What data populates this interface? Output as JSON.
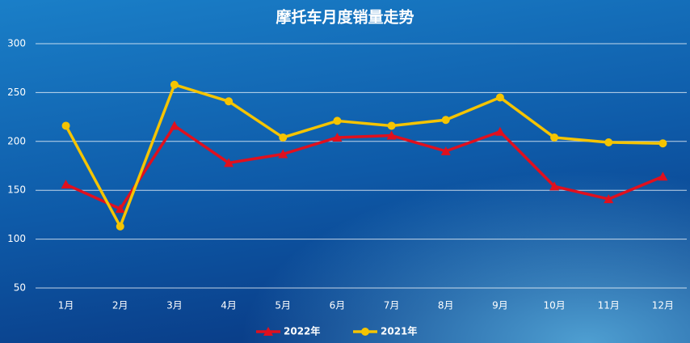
{
  "chart_data": {
    "type": "line",
    "title": "摩托车月度销量走势",
    "categories": [
      "1月",
      "2月",
      "3月",
      "4月",
      "5月",
      "6月",
      "7月",
      "8月",
      "9月",
      "10月",
      "11月",
      "12月"
    ],
    "series": [
      {
        "name": "2022年",
        "color": "#e0101e",
        "marker": "triangle",
        "values": [
          156,
          131,
          216,
          178,
          187,
          204,
          206,
          190,
          210,
          154,
          141,
          164
        ]
      },
      {
        "name": "2021年",
        "color": "#f5c400",
        "marker": "circle",
        "values": [
          216,
          113,
          258,
          241,
          204,
          221,
          216,
          222,
          245,
          204,
          199,
          198
        ]
      }
    ],
    "ylim": [
      50,
      300
    ],
    "yticks": [
      50,
      100,
      150,
      200,
      250,
      300
    ],
    "grid": true,
    "legend": "bottom"
  }
}
